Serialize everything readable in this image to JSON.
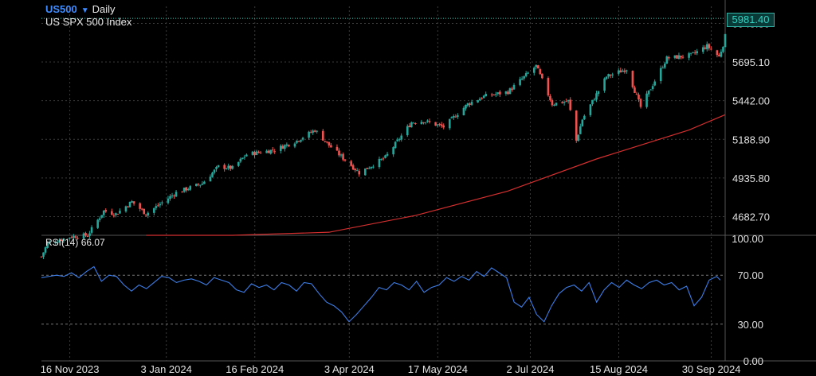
{
  "header": {
    "symbol": "US500",
    "timeframe": "Daily",
    "instrument_name": "US SPX 500 Index",
    "last_price": "5981.40"
  },
  "indicator": {
    "label": "RSI(14)",
    "value": "66.07"
  },
  "colors": {
    "background": "#000000",
    "grid": "#3a3a3a",
    "up_candle": "#26a69a",
    "down_candle": "#ef5350",
    "moving_average": "#d32f2f",
    "rsi_line": "#3d7ee8",
    "last_price": "#2fd3c2",
    "symbol": "#3f8cff"
  },
  "icons": {
    "symbol_dropdown": "caret-down-icon"
  },
  "chart_data": [
    {
      "type": "candlestick",
      "title": "US SPX 500 Index",
      "ylim": [
        4560,
        6060
      ],
      "y_ticks": [
        "5948.30",
        "5695.10",
        "5442.00",
        "5188.90",
        "4935.80",
        "4682.70"
      ],
      "x_ticks": [
        "16 Nov 2023",
        "3 Jan 2024",
        "16 Feb 2024",
        "3 Apr 2024",
        "17 May 2024",
        "2 Jul 2024",
        "15 Aug 2024",
        "30 Sep 2024"
      ],
      "x_range": [
        "2023-11-13",
        "2024-10-18"
      ],
      "close_path": [
        [
          "2023-11-13",
          4420
        ],
        [
          "2023-11-16",
          4508
        ],
        [
          "2023-11-28",
          4552
        ],
        [
          "2023-12-06",
          4560
        ],
        [
          "2023-12-14",
          4720
        ],
        [
          "2023-12-20",
          4700
        ],
        [
          "2023-12-28",
          4780
        ],
        [
          "2024-01-04",
          4700
        ],
        [
          "2024-01-19",
          4840
        ],
        [
          "2024-02-01",
          4900
        ],
        [
          "2024-02-09",
          5010
        ],
        [
          "2024-02-16",
          5000
        ],
        [
          "2024-02-23",
          5090
        ],
        [
          "2024-03-08",
          5120
        ],
        [
          "2024-03-19",
          5180
        ],
        [
          "2024-03-28",
          5250
        ],
        [
          "2024-04-04",
          5150
        ],
        [
          "2024-04-19",
          4970
        ],
        [
          "2024-05-02",
          5070
        ],
        [
          "2024-05-15",
          5300
        ],
        [
          "2024-05-21",
          5310
        ],
        [
          "2024-05-31",
          5270
        ],
        [
          "2024-06-12",
          5420
        ],
        [
          "2024-06-20",
          5470
        ],
        [
          "2024-07-02",
          5500
        ],
        [
          "2024-07-16",
          5670
        ],
        [
          "2024-07-24",
          5420
        ],
        [
          "2024-08-01",
          5440
        ],
        [
          "2024-08-05",
          5180
        ],
        [
          "2024-08-08",
          5320
        ],
        [
          "2024-08-20",
          5600
        ],
        [
          "2024-08-30",
          5650
        ],
        [
          "2024-09-06",
          5400
        ],
        [
          "2024-09-19",
          5720
        ],
        [
          "2024-10-01",
          5740
        ],
        [
          "2024-10-09",
          5800
        ],
        [
          "2024-10-15",
          5730
        ],
        [
          "2024-10-17",
          5810
        ],
        [
          "2024-10-18",
          5864
        ]
      ],
      "moving_average_path": [
        [
          "2024-01-04",
          4380
        ],
        [
          "2024-02-16",
          4460
        ],
        [
          "2024-04-04",
          4580
        ],
        [
          "2024-05-17",
          4690
        ],
        [
          "2024-07-02",
          4850
        ],
        [
          "2024-08-15",
          5060
        ],
        [
          "2024-09-30",
          5250
        ],
        [
          "2024-10-18",
          5350
        ]
      ],
      "last_price": 5981.4
    },
    {
      "type": "line",
      "title": "RSI(14) 66.07",
      "ylim": [
        0,
        100
      ],
      "y_ticks": [
        "100.00",
        "70.00",
        "30.00",
        "0.00"
      ],
      "levels": [
        70,
        30
      ],
      "series": [
        {
          "values": [
            [
              0,
              68
            ],
            [
              10,
              69
            ],
            [
              20,
              70
            ],
            [
              30,
              69
            ],
            [
              40,
              72
            ],
            [
              50,
              68
            ],
            [
              60,
              73
            ],
            [
              70,
              77
            ],
            [
              80,
              65
            ],
            [
              90,
              70
            ],
            [
              100,
              69
            ],
            [
              110,
              62
            ],
            [
              120,
              57
            ],
            [
              130,
              62
            ],
            [
              140,
              59
            ],
            [
              150,
              64
            ],
            [
              160,
              69
            ],
            [
              170,
              68
            ],
            [
              180,
              64
            ],
            [
              190,
              66
            ],
            [
              200,
              67
            ],
            [
              210,
              65
            ],
            [
              220,
              62
            ],
            [
              230,
              68
            ],
            [
              240,
              66
            ],
            [
              250,
              64
            ],
            [
              260,
              58
            ],
            [
              270,
              56
            ],
            [
              280,
              63
            ],
            [
              290,
              60
            ],
            [
              300,
              62
            ],
            [
              310,
              58
            ],
            [
              320,
              64
            ],
            [
              330,
              62
            ],
            [
              340,
              57
            ],
            [
              350,
              64
            ],
            [
              360,
              63
            ],
            [
              370,
              55
            ],
            [
              380,
              48
            ],
            [
              390,
              45
            ],
            [
              400,
              40
            ],
            [
              410,
              32
            ],
            [
              420,
              38
            ],
            [
              430,
              45
            ],
            [
              440,
              52
            ],
            [
              450,
              60
            ],
            [
              460,
              58
            ],
            [
              470,
              64
            ],
            [
              480,
              62
            ],
            [
              490,
              58
            ],
            [
              500,
              65
            ],
            [
              510,
              56
            ],
            [
              520,
              60
            ],
            [
              530,
              62
            ],
            [
              540,
              68
            ],
            [
              550,
              65
            ],
            [
              560,
              69
            ],
            [
              570,
              66
            ],
            [
              580,
              73
            ],
            [
              590,
              69
            ],
            [
              600,
              76
            ],
            [
              610,
              72
            ],
            [
              620,
              68
            ],
            [
              630,
              48
            ],
            [
              640,
              44
            ],
            [
              650,
              52
            ],
            [
              660,
              38
            ],
            [
              670,
              32
            ],
            [
              680,
              45
            ],
            [
              690,
              55
            ],
            [
              700,
              60
            ],
            [
              710,
              62
            ],
            [
              720,
              57
            ],
            [
              730,
              64
            ],
            [
              740,
              48
            ],
            [
              750,
              58
            ],
            [
              760,
              64
            ],
            [
              770,
              60
            ],
            [
              780,
              66
            ],
            [
              790,
              62
            ],
            [
              800,
              59
            ],
            [
              810,
              64
            ],
            [
              820,
              66
            ],
            [
              830,
              62
            ],
            [
              840,
              64
            ],
            [
              850,
              58
            ],
            [
              860,
              61
            ],
            [
              870,
              45
            ],
            [
              880,
              52
            ],
            [
              890,
              66
            ],
            [
              900,
              69
            ],
            [
              905,
              66
            ]
          ]
        }
      ]
    }
  ]
}
